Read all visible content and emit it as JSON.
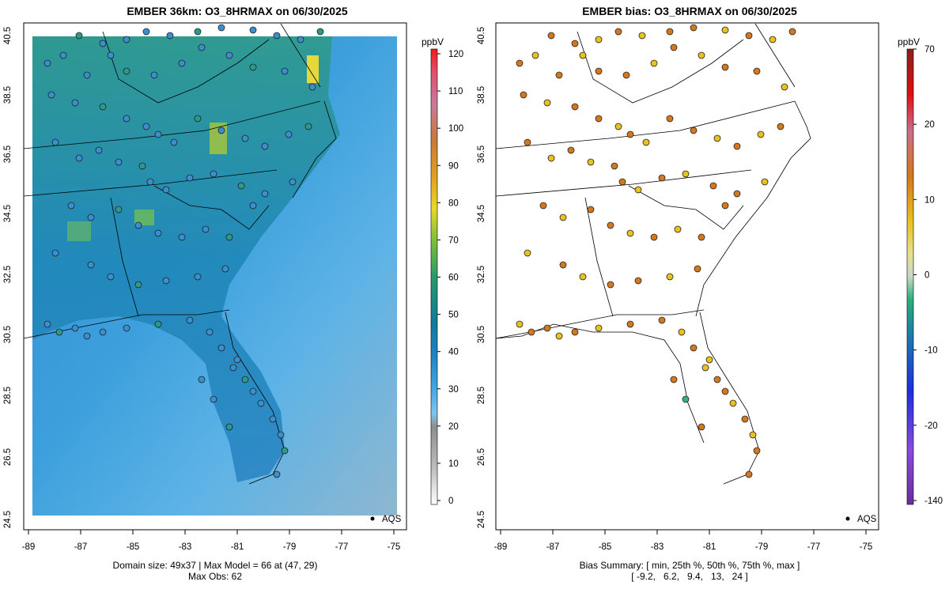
{
  "left_panel": {
    "title": "EMBER 36km: O3_8HRMAX on 06/30/2025",
    "colorbar_unit": "ppbV",
    "colorbar_ticks": [
      "0",
      "10",
      "20",
      "30",
      "40",
      "50",
      "60",
      "70",
      "80",
      "90",
      "100",
      "110",
      "120"
    ],
    "legend_label": "AQS",
    "footer_line1": "Domain size: 49x37 | Max Model = 66 at (47, 29)",
    "footer_line2": "Max Obs: 62"
  },
  "right_panel": {
    "title": "EMBER bias: O3_8HRMAX on 06/30/2025",
    "colorbar_unit": "ppbV",
    "colorbar_ticks": [
      "-140",
      "-20",
      "-10",
      "0",
      "10",
      "20",
      "70"
    ],
    "legend_label": "AQS",
    "footer_line1": "Bias Summary: [ min, 25th %, 50th %, 75th %, max ]",
    "footer_line2": "[ -9.2,   6.2,   9.4,   13,   24 ]"
  },
  "axes": {
    "x_ticks": [
      "-89",
      "-87",
      "-85",
      "-83",
      "-81",
      "-79",
      "-77",
      "-75"
    ],
    "y_ticks": [
      "24.5",
      "26.5",
      "28.5",
      "30.5",
      "32.5",
      "34.5",
      "36.5",
      "38.5",
      "40.5"
    ]
  },
  "colors": {
    "ocean_background": "#5aaee6",
    "bias_high": "#d4781e",
    "bias_mid": "#e8c21f",
    "bias_low": "#3ab07a"
  }
}
